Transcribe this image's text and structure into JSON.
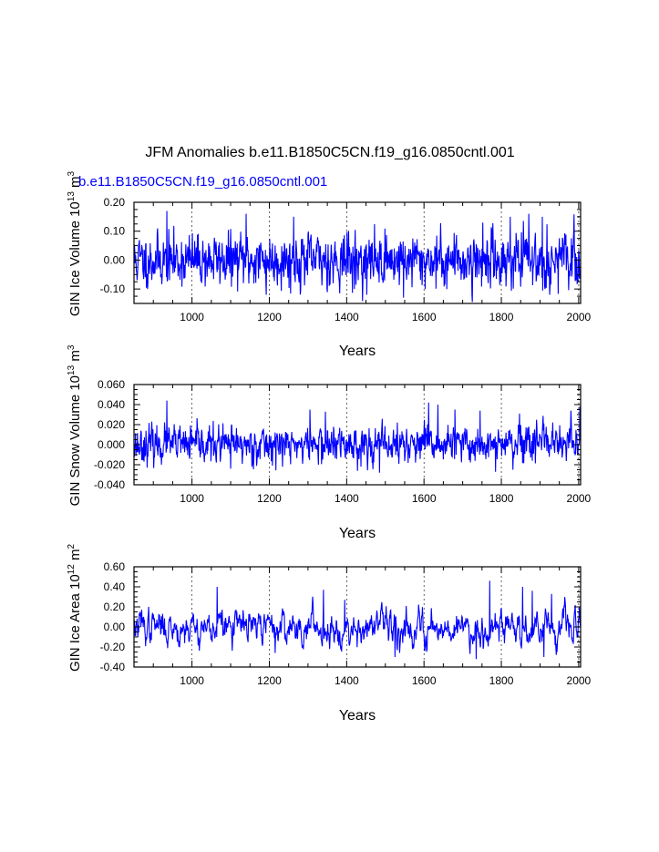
{
  "figure": {
    "title": "JFM Anomalies b.e11.B1850C5CN.f19_g16.0850cntl.001",
    "legend_label": "b.e11.B1850C5CN.f19_g16.0850cntl.001",
    "line_color": "#0000ff",
    "grid_color": "#000000"
  },
  "chart_data": [
    {
      "type": "line",
      "name": "ice-volume",
      "ylabel_main": "GIN Ice Volume 10",
      "ylabel_exp": "13",
      "ylabel_unit": " m",
      "ylabel_unit_exp": "3",
      "xlabel": "Years",
      "xlim": [
        850,
        2005
      ],
      "ylim": [
        -0.15,
        0.2
      ],
      "xticks": [
        1000,
        1200,
        1400,
        1600,
        1800,
        2000
      ],
      "xtick_labels": [
        "1000",
        "1200",
        "1400",
        "1600",
        "1800",
        "2000"
      ],
      "yticks": [
        -0.1,
        0.0,
        0.1,
        0.2
      ],
      "ytick_labels": [
        "-0.10",
        "0.00",
        "0.10",
        "0.20"
      ],
      "grid": "x-dashed",
      "series": [
        {
          "name": "b.e11.B1850C5CN.f19_g16.0850cntl.001",
          "noise_sd": 0.045,
          "smooth": 0.25,
          "seed": 11,
          "highlights": [
            [
              935,
              0.17
            ],
            [
              1140,
              0.16
            ],
            [
              1263,
              0.15
            ],
            [
              1752,
              0.13
            ],
            [
              1823,
              0.15
            ],
            [
              1871,
              0.16
            ],
            [
              1906,
              0.15
            ],
            [
              1725,
              -0.145
            ],
            [
              1192,
              -0.12
            ],
            [
              1452,
              -0.12
            ],
            [
              1547,
              -0.13
            ],
            [
              1925,
              -0.12
            ],
            [
              885,
              -0.1
            ],
            [
              1420,
              -0.1
            ]
          ]
        }
      ]
    },
    {
      "type": "line",
      "name": "snow-volume",
      "ylabel_main": "GIN Snow Volume 10",
      "ylabel_exp": "13",
      "ylabel_unit": " m",
      "ylabel_unit_exp": "3",
      "xlabel": "Years",
      "xlim": [
        850,
        2005
      ],
      "ylim": [
        -0.04,
        0.06
      ],
      "xticks": [
        1000,
        1200,
        1400,
        1600,
        1800,
        2000
      ],
      "xtick_labels": [
        "1000",
        "1200",
        "1400",
        "1600",
        "1800",
        "2000"
      ],
      "yticks": [
        -0.04,
        -0.02,
        0.0,
        0.02,
        0.04,
        0.06
      ],
      "ytick_labels": [
        "-0.040",
        "-0.020",
        "0.000",
        "0.020",
        "0.040",
        "0.060"
      ],
      "grid": "x-dashed",
      "series": [
        {
          "name": "b.e11.B1850C5CN.f19_g16.0850cntl.001",
          "noise_sd": 0.009,
          "smooth": 0.3,
          "seed": 23,
          "highlights": [
            [
              935,
              0.044
            ],
            [
              1305,
              0.035
            ],
            [
              1345,
              0.033
            ],
            [
              1612,
              0.042
            ],
            [
              1636,
              0.04
            ],
            [
              1680,
              0.035
            ],
            [
              1745,
              0.034
            ],
            [
              1980,
              0.034
            ],
            [
              2003,
              0.038
            ],
            [
              1485,
              -0.028
            ],
            [
              1785,
              -0.027
            ],
            [
              1830,
              -0.025
            ],
            [
              1100,
              -0.024
            ]
          ]
        }
      ]
    },
    {
      "type": "line",
      "name": "ice-area",
      "ylabel_main": "GIN Ice Area 10",
      "ylabel_exp": "12",
      "ylabel_unit": " m",
      "ylabel_unit_exp": "2",
      "xlabel": "Years",
      "xlim": [
        850,
        2005
      ],
      "ylim": [
        -0.4,
        0.6
      ],
      "xticks": [
        1000,
        1200,
        1400,
        1600,
        1800,
        2000
      ],
      "xtick_labels": [
        "1000",
        "1200",
        "1400",
        "1600",
        "1800",
        "2000"
      ],
      "yticks": [
        -0.4,
        -0.2,
        0.0,
        0.2,
        0.4,
        0.6
      ],
      "ytick_labels": [
        "-0.40",
        "-0.20",
        "0.00",
        "0.20",
        "0.40",
        "0.60"
      ],
      "grid": "x-dashed",
      "series": [
        {
          "name": "b.e11.B1850C5CN.f19_g16.0850cntl.001",
          "noise_sd": 0.09,
          "smooth": 0.72,
          "seed": 37,
          "highlights": [
            [
              1065,
              0.4
            ],
            [
              1340,
              0.37
            ],
            [
              1770,
              0.46
            ],
            [
              1855,
              0.4
            ],
            [
              1880,
              0.36
            ],
            [
              1930,
              0.33
            ],
            [
              1395,
              0.27
            ],
            [
              1735,
              -0.32
            ],
            [
              1910,
              -0.3
            ],
            [
              1215,
              -0.26
            ],
            [
              1525,
              -0.3
            ]
          ]
        }
      ]
    }
  ]
}
